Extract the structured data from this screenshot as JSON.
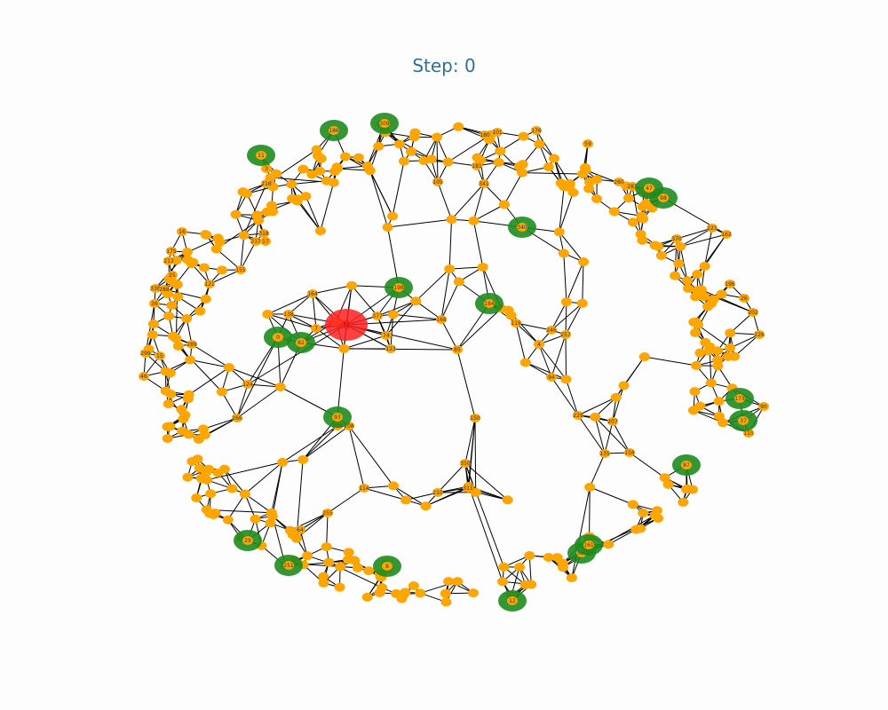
{
  "title": "Step: 0",
  "colors": {
    "title": "#2f6f9b",
    "edge": "#000000",
    "node_default": "#ffa500",
    "node_highlight": "#1e8c1e",
    "node_source": "#ff2020"
  },
  "graph": {
    "source_node": "72",
    "highlighted_nodes": [
      "11",
      "198",
      "340",
      "184",
      "93",
      "87",
      "173",
      "37",
      "305",
      "161",
      "12",
      "98",
      "0",
      "82",
      "29",
      "251",
      "8",
      "186",
      "309",
      "47"
    ],
    "nodes": [
      "72",
      "377",
      "168",
      "138",
      "198",
      "164",
      "85",
      "340",
      "184",
      "119",
      "4",
      "246",
      "257",
      "105",
      "181",
      "341",
      "82",
      "0",
      "93",
      "254",
      "208",
      "350",
      "150",
      "87",
      "173",
      "37",
      "305",
      "161",
      "12",
      "8",
      "251",
      "29",
      "41",
      "7",
      "74",
      "123",
      "114",
      "210",
      "64",
      "255",
      "94",
      "229",
      "207",
      "135",
      "158",
      "231",
      "98",
      "47",
      "185",
      "370",
      "11",
      "186",
      "309",
      "180",
      "101",
      "176",
      "59",
      "260",
      "283",
      "221",
      "162",
      "196",
      "26",
      "202",
      "226",
      "90",
      "115",
      "15",
      "299",
      "46",
      "16",
      "175",
      "213",
      "338",
      "288",
      "25",
      "216",
      "155",
      "17",
      "318",
      "3",
      "237",
      "121",
      "289",
      "266",
      "124",
      "36",
      "311"
    ]
  }
}
